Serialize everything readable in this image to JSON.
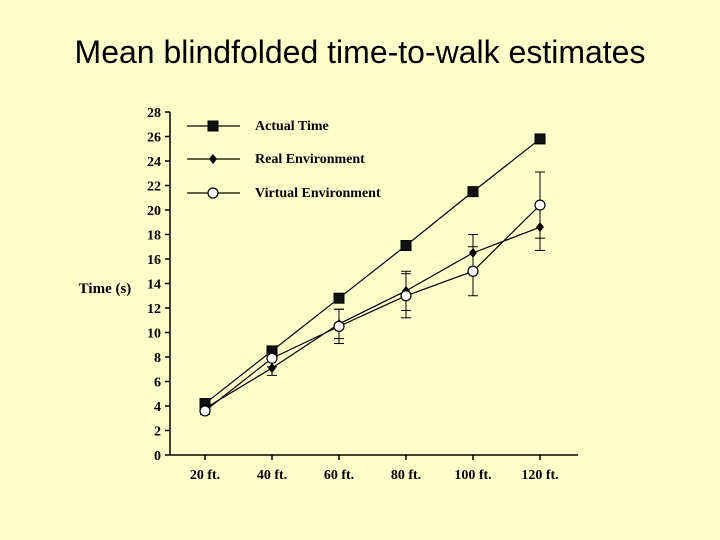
{
  "slide": {
    "title": "Mean blindfolded time-to-walk estimates"
  },
  "chart_data": {
    "type": "line",
    "title": "",
    "xlabel": "",
    "ylabel": "Time (s)",
    "categories": [
      "20 ft.",
      "40 ft.",
      "60 ft.",
      "80 ft.",
      "100 ft.",
      "120 ft."
    ],
    "ylim": [
      0,
      28
    ],
    "yticks": [
      0,
      2,
      4,
      6,
      8,
      10,
      12,
      14,
      16,
      18,
      20,
      22,
      24,
      26,
      28
    ],
    "grid": false,
    "legend_position": "top-left",
    "series": [
      {
        "name": "Actual Time",
        "marker": "square",
        "values": [
          4.2,
          8.5,
          12.8,
          17.1,
          21.5,
          25.8
        ]
      },
      {
        "name": "Real Environment",
        "marker": "diamond",
        "values": [
          3.8,
          7.1,
          10.7,
          13.4,
          16.5,
          18.6
        ],
        "error": [
          0.3,
          0.6,
          1.2,
          1.6,
          1.5,
          1.9
        ]
      },
      {
        "name": "Virtual  Environment",
        "marker": "circle",
        "values": [
          3.6,
          7.9,
          10.5,
          13.0,
          15.0,
          20.4
        ],
        "error": [
          0.3,
          0.7,
          1.4,
          1.8,
          2.0,
          2.7
        ]
      }
    ]
  }
}
